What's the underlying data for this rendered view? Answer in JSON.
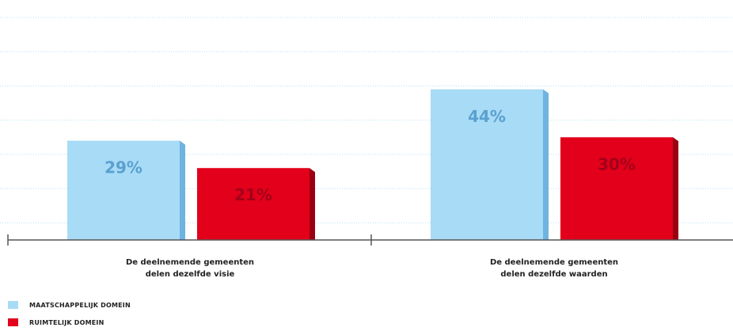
{
  "chart_data": {
    "type": "bar",
    "categories": [
      [
        "De deelnemende gemeenten",
        "delen dezelfde visie"
      ],
      [
        "De deelnemende gemeenten",
        "delen dezelfde waarden"
      ]
    ],
    "series": [
      {
        "name": "MAATSCHAPPELIJK DOMEIN",
        "values": [
          29,
          44
        ],
        "labels": [
          "29%",
          "44%"
        ],
        "color": "#a8dbf5",
        "side_color": "#6fb3e0",
        "label_color": "#5aa0d0"
      },
      {
        "name": "RUIMTELIJK DOMEIN",
        "values": [
          21,
          30
        ],
        "labels": [
          "21%",
          "30%"
        ],
        "color": "#e2001a",
        "side_color": "#9a0012",
        "label_color": "#a3001a"
      }
    ],
    "ylim": [
      0,
      65
    ],
    "grid": true,
    "gridline_values": [
      5,
      15,
      25,
      35,
      45,
      55,
      65
    ],
    "legend_position": "bottom-left"
  }
}
